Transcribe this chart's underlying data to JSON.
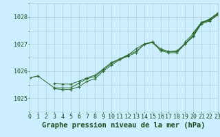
{
  "title": "Graphe pression niveau de la mer (hPa)",
  "xlabel_hours": [
    0,
    1,
    2,
    3,
    4,
    5,
    6,
    7,
    8,
    9,
    10,
    11,
    12,
    13,
    14,
    15,
    16,
    17,
    18,
    19,
    20,
    21,
    22,
    23
  ],
  "series": [
    [
      1025.75,
      1025.82,
      null,
      null,
      null,
      null,
      null,
      null,
      null,
      null,
      null,
      null,
      null,
      null,
      null,
      null,
      null,
      null,
      null,
      null,
      null,
      null,
      null,
      null
    ],
    [
      1025.75,
      1025.82,
      null,
      1025.38,
      1025.38,
      1025.38,
      1025.55,
      1025.72,
      1025.8,
      1026.05,
      1026.28,
      1026.45,
      1026.58,
      1026.82,
      1027.0,
      1027.05,
      1026.78,
      1026.72,
      1026.72,
      1027.0,
      1027.28,
      1027.8,
      1027.88,
      1028.1
    ],
    [
      null,
      null,
      null,
      1025.55,
      1025.52,
      1025.52,
      1025.62,
      1025.75,
      1025.85,
      1026.08,
      1026.32,
      1026.45,
      1026.6,
      1026.72,
      1026.98,
      1027.08,
      1026.82,
      1026.72,
      1026.75,
      1027.02,
      1027.32,
      1027.78,
      1027.88,
      1028.1
    ],
    [
      null,
      null,
      null,
      1025.35,
      1025.32,
      1025.32,
      1025.42,
      1025.62,
      1025.72,
      1026.0,
      1026.22,
      1026.42,
      1026.55,
      1026.68,
      1027.0,
      1027.08,
      1026.75,
      1026.68,
      1026.68,
      1027.0,
      1027.28,
      1027.75,
      1027.85,
      1028.08
    ],
    [
      null,
      null,
      null,
      null,
      null,
      null,
      null,
      null,
      null,
      null,
      null,
      null,
      null,
      null,
      null,
      null,
      null,
      null,
      null,
      1027.08,
      1027.38,
      1027.78,
      1027.92,
      1028.12
    ],
    [
      null,
      null,
      null,
      null,
      null,
      null,
      null,
      null,
      null,
      null,
      null,
      null,
      null,
      null,
      null,
      null,
      null,
      null,
      null,
      null,
      1027.42,
      1027.8,
      1027.92,
      1028.15
    ]
  ],
  "yticks": [
    1025,
    1026,
    1027
  ],
  "ylim": [
    1024.6,
    1028.45
  ],
  "xlim": [
    0,
    23
  ],
  "line_color": "#2d6a2d",
  "bg_color": "#cceeff",
  "grid_color": "#b0d4d4",
  "title_color": "#1a4a1a",
  "tick_color": "#1a4a1a",
  "title_fontsize": 7.5,
  "tick_fontsize": 6.0
}
